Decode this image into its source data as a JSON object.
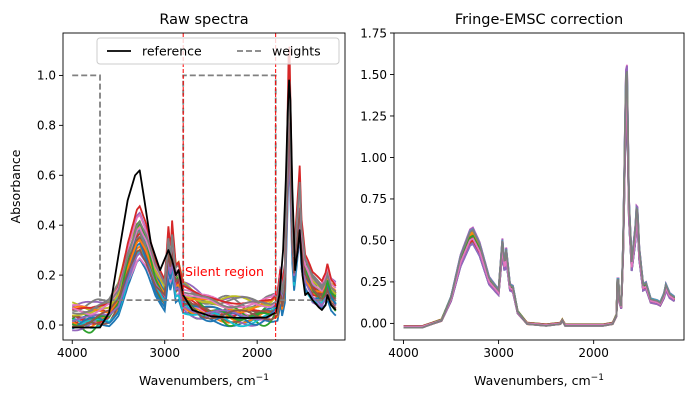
{
  "chart_data": [
    {
      "type": "line",
      "title": "Raw spectra",
      "xlabel": "Wavenumbers, cm",
      "xlabel_sup": "−1",
      "ylabel": "Absorbance",
      "x_reversed": true,
      "xlim": [
        4100,
        1050
      ],
      "ylim": [
        -0.06,
        1.17
      ],
      "xticks": [
        4000,
        3000,
        2000
      ],
      "xtick_labels": [
        "4000",
        "3000",
        "2000"
      ],
      "yticks": [
        0.0,
        0.2,
        0.4,
        0.6,
        0.8,
        1.0
      ],
      "ytick_labels": [
        "0.0",
        "0.2",
        "0.4",
        "0.6",
        "0.8",
        "1.0"
      ],
      "grid": false,
      "legend": {
        "placement": "top-right",
        "entries": [
          "reference",
          "weights"
        ]
      },
      "annotation": {
        "text": "Silent region",
        "x": 2780,
        "y": 0.2,
        "color": "#ff0000"
      },
      "vlines": [
        2800,
        1800
      ],
      "vline_color": "#ff0000",
      "reference": {
        "name": "reference",
        "color": "#000000",
        "points": [
          [
            4000,
            -0.01
          ],
          [
            3700,
            -0.01
          ],
          [
            3600,
            0.05
          ],
          [
            3500,
            0.28
          ],
          [
            3400,
            0.5
          ],
          [
            3320,
            0.6
          ],
          [
            3270,
            0.62
          ],
          [
            3220,
            0.5
          ],
          [
            3150,
            0.33
          ],
          [
            3050,
            0.22
          ],
          [
            2960,
            0.3
          ],
          [
            2920,
            0.26
          ],
          [
            2880,
            0.2
          ],
          [
            2850,
            0.22
          ],
          [
            2800,
            0.12
          ],
          [
            2700,
            0.06
          ],
          [
            2500,
            0.035
          ],
          [
            2300,
            0.03
          ],
          [
            2100,
            0.028
          ],
          [
            1900,
            0.03
          ],
          [
            1800,
            0.05
          ],
          [
            1760,
            0.12
          ],
          [
            1720,
            0.3
          ],
          [
            1690,
            0.58
          ],
          [
            1670,
            0.85
          ],
          [
            1655,
            0.98
          ],
          [
            1640,
            0.9
          ],
          [
            1620,
            0.55
          ],
          [
            1590,
            0.22
          ],
          [
            1560,
            0.3
          ],
          [
            1540,
            0.38
          ],
          [
            1510,
            0.2
          ],
          [
            1480,
            0.12
          ],
          [
            1450,
            0.13
          ],
          [
            1400,
            0.1
          ],
          [
            1330,
            0.07
          ],
          [
            1300,
            0.06
          ],
          [
            1260,
            0.08
          ],
          [
            1240,
            0.12
          ],
          [
            1200,
            0.08
          ],
          [
            1150,
            0.06
          ]
        ]
      },
      "weights": {
        "name": "weights",
        "color": "#808080",
        "points": [
          [
            4000,
            1.0
          ],
          [
            3700,
            1.0
          ],
          [
            3700,
            0.1
          ],
          [
            2800,
            0.1
          ],
          [
            2800,
            1.0
          ],
          [
            1800,
            1.0
          ],
          [
            1800,
            0.1
          ],
          [
            1150,
            0.1
          ]
        ]
      },
      "spectra": {
        "count": 28,
        "colors": [
          "#1f77b4",
          "#ff7f0e",
          "#2ca02c",
          "#d62728",
          "#9467bd",
          "#8c564b",
          "#e377c2",
          "#7f7f7f",
          "#bcbd22",
          "#17becf"
        ],
        "base_shape": [
          [
            4000,
            0.0
          ],
          [
            3800,
            0.0
          ],
          [
            3600,
            0.02
          ],
          [
            3500,
            0.08
          ],
          [
            3400,
            0.22
          ],
          [
            3300,
            0.33
          ],
          [
            3270,
            0.34
          ],
          [
            3200,
            0.28
          ],
          [
            3100,
            0.16
          ],
          [
            3000,
            0.1
          ],
          [
            2960,
            0.28
          ],
          [
            2935,
            0.2
          ],
          [
            2920,
            0.3
          ],
          [
            2880,
            0.15
          ],
          [
            2850,
            0.16
          ],
          [
            2800,
            0.08
          ],
          [
            2600,
            0.04
          ],
          [
            2400,
            0.03
          ],
          [
            2200,
            0.02
          ],
          [
            2000,
            0.02
          ],
          [
            1850,
            0.03
          ],
          [
            1780,
            0.05
          ],
          [
            1745,
            0.15
          ],
          [
            1730,
            0.08
          ],
          [
            1700,
            0.15
          ],
          [
            1680,
            0.5
          ],
          [
            1660,
            0.85
          ],
          [
            1650,
            0.88
          ],
          [
            1640,
            0.7
          ],
          [
            1620,
            0.35
          ],
          [
            1600,
            0.2
          ],
          [
            1560,
            0.38
          ],
          [
            1540,
            0.48
          ],
          [
            1520,
            0.3
          ],
          [
            1480,
            0.18
          ],
          [
            1450,
            0.16
          ],
          [
            1400,
            0.12
          ],
          [
            1330,
            0.1
          ],
          [
            1300,
            0.09
          ],
          [
            1260,
            0.12
          ],
          [
            1240,
            0.15
          ],
          [
            1200,
            0.1
          ],
          [
            1150,
            0.08
          ]
        ],
        "offset_range": [
          -0.01,
          0.08
        ],
        "scale_range": [
          0.75,
          1.2
        ],
        "fringe_amp_range": [
          0.005,
          0.025
        ]
      }
    },
    {
      "type": "line",
      "title": "Fringe-EMSC correction",
      "xlabel": "Wavenumbers, cm",
      "xlabel_sup": "−1",
      "ylabel": "",
      "x_reversed": true,
      "xlim": [
        4100,
        1050
      ],
      "ylim": [
        -0.1,
        1.75
      ],
      "xticks": [
        4000,
        3000,
        2000
      ],
      "xtick_labels": [
        "4000",
        "3000",
        "2000"
      ],
      "yticks": [
        0.0,
        0.25,
        0.5,
        0.75,
        1.0,
        1.25,
        1.5,
        1.75
      ],
      "ytick_labels": [
        "0.00",
        "0.25",
        "0.50",
        "0.75",
        "1.00",
        "1.25",
        "1.50",
        "1.75"
      ],
      "grid": false,
      "spectra": {
        "count": 28,
        "colors": [
          "#1f77b4",
          "#ff7f0e",
          "#2ca02c",
          "#d62728",
          "#9467bd",
          "#8c564b",
          "#e377c2",
          "#7f7f7f",
          "#bcbd22",
          "#17becf"
        ],
        "base_shape": [
          [
            4000,
            -0.02
          ],
          [
            3800,
            -0.02
          ],
          [
            3600,
            0.02
          ],
          [
            3500,
            0.15
          ],
          [
            3400,
            0.38
          ],
          [
            3300,
            0.52
          ],
          [
            3270,
            0.53
          ],
          [
            3200,
            0.45
          ],
          [
            3100,
            0.26
          ],
          [
            3000,
            0.19
          ],
          [
            2960,
            0.47
          ],
          [
            2935,
            0.33
          ],
          [
            2920,
            0.42
          ],
          [
            2880,
            0.22
          ],
          [
            2850,
            0.21
          ],
          [
            2800,
            0.07
          ],
          [
            2700,
            0.0
          ],
          [
            2500,
            -0.01
          ],
          [
            2350,
            0.0
          ],
          [
            2330,
            0.02
          ],
          [
            2300,
            -0.01
          ],
          [
            2100,
            -0.01
          ],
          [
            1900,
            -0.01
          ],
          [
            1800,
            0.0
          ],
          [
            1760,
            0.05
          ],
          [
            1745,
            0.35
          ],
          [
            1735,
            0.15
          ],
          [
            1710,
            0.1
          ],
          [
            1690,
            0.45
          ],
          [
            1670,
            1.1
          ],
          [
            1655,
            1.55
          ],
          [
            1645,
            1.3
          ],
          [
            1630,
            0.7
          ],
          [
            1600,
            0.35
          ],
          [
            1560,
            0.55
          ],
          [
            1545,
            0.7
          ],
          [
            1520,
            0.42
          ],
          [
            1480,
            0.22
          ],
          [
            1450,
            0.23
          ],
          [
            1400,
            0.14
          ],
          [
            1330,
            0.13
          ],
          [
            1300,
            0.12
          ],
          [
            1260,
            0.17
          ],
          [
            1240,
            0.22
          ],
          [
            1200,
            0.17
          ],
          [
            1150,
            0.15
          ]
        ],
        "offset_range": [
          -0.005,
          0.005
        ],
        "scale_range": [
          0.9,
          1.1
        ],
        "fringe_amp_range": [
          0.0,
          0.0
        ]
      }
    }
  ]
}
